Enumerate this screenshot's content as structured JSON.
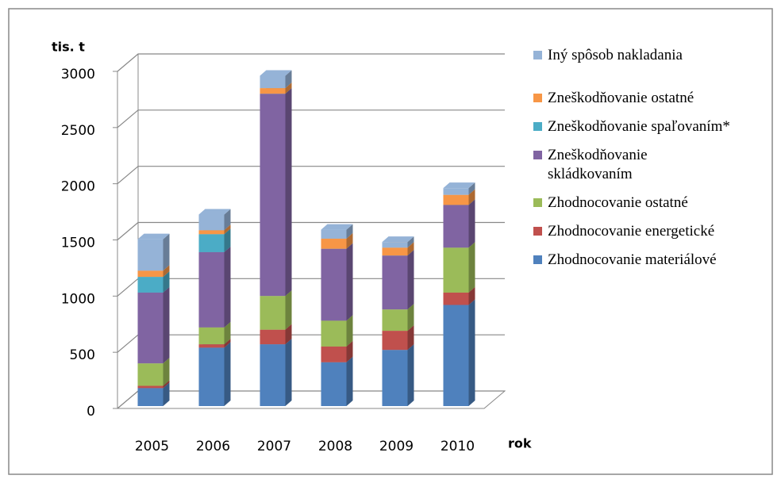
{
  "chart_data": {
    "type": "bar3d_stacked",
    "ylabel": "tis. t",
    "xlabel": "rok",
    "categories": [
      "2005",
      "2006",
      "2007",
      "2008",
      "2009",
      "2010"
    ],
    "ylim": [
      0,
      3000
    ],
    "yticks": [
      0,
      500,
      1000,
      1500,
      2000,
      2500,
      3000
    ],
    "grid": true,
    "series": [
      {
        "name": "Zhodnocovanie materiálové",
        "color": "#4f81bd",
        "values": [
          160,
          520,
          550,
          390,
          500,
          900
        ]
      },
      {
        "name": "Zhodnocovanie energetické",
        "color": "#c0504d",
        "values": [
          20,
          30,
          130,
          140,
          170,
          110
        ]
      },
      {
        "name": "Zhodnocovanie ostatné",
        "color": "#9bbb59",
        "values": [
          200,
          150,
          300,
          230,
          190,
          400
        ]
      },
      {
        "name": "Zneškodňovanie skládkovaním",
        "color": "#8064a2",
        "values": [
          630,
          670,
          1800,
          640,
          480,
          380
        ]
      },
      {
        "name": "Zneškodňovanie spaľovaním*",
        "color": "#4bacc6",
        "values": [
          140,
          160,
          0,
          0,
          0,
          0
        ]
      },
      {
        "name": "Zneškodňovanie ostatné",
        "color": "#f79646",
        "values": [
          55,
          35,
          50,
          90,
          70,
          90
        ]
      },
      {
        "name": "Iný spôsob nakladania",
        "color": "#95b3d7",
        "values": [
          280,
          140,
          110,
          80,
          50,
          60
        ]
      }
    ]
  }
}
